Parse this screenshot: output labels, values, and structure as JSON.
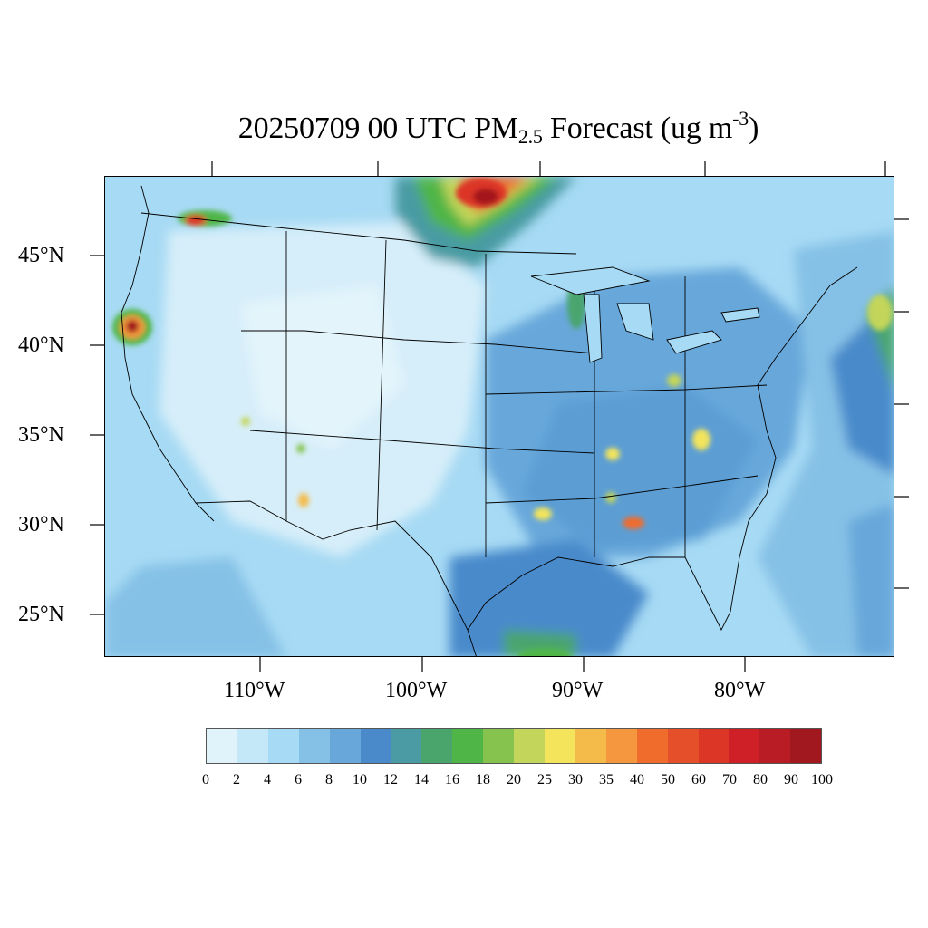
{
  "title": {
    "main": "20250709 00 UTC PM",
    "subscript": "2.5",
    "suffix": " Forecast (ug m",
    "superscript": "-3",
    "closing": ")"
  },
  "map": {
    "projection": "Lambert Conformal",
    "region": "Contiguous United States",
    "lat_labels": [
      "45°N",
      "40°N",
      "35°N",
      "30°N",
      "25°N"
    ],
    "lon_labels": [
      "110°W",
      "100°W",
      "90°W",
      "80°W"
    ],
    "features": [
      "state-borders",
      "coastlines",
      "country-borders",
      "great-lakes"
    ],
    "hotspots": [
      {
        "name": "southern-canada-smoke",
        "peak_value": 100
      },
      {
        "name": "northwest-washington",
        "peak_value": 70
      },
      {
        "name": "northern-california-oregon",
        "peak_value": 100
      },
      {
        "name": "new-mexico-south",
        "peak_value": 35
      },
      {
        "name": "arizona-north",
        "peak_value": 25
      },
      {
        "name": "louisiana",
        "peak_value": 30
      },
      {
        "name": "alabama-south",
        "peak_value": 50
      },
      {
        "name": "north-carolina",
        "peak_value": 30
      },
      {
        "name": "tennessee",
        "peak_value": 25
      },
      {
        "name": "atlantic-offshore",
        "peak_value": 25
      }
    ]
  },
  "colorbar": {
    "labels": [
      "0",
      "2",
      "4",
      "6",
      "8",
      "10",
      "12",
      "14",
      "16",
      "18",
      "20",
      "25",
      "30",
      "35",
      "40",
      "50",
      "60",
      "70",
      "80",
      "90",
      "100"
    ],
    "colors": [
      "#e0f3fb",
      "#c5e8f8",
      "#a7daf4",
      "#85c1e6",
      "#67a7da",
      "#4a8acb",
      "#4a9ba3",
      "#4aa56d",
      "#4fb547",
      "#85c34e",
      "#c3d55a",
      "#f3e45b",
      "#f4bb4a",
      "#f4973e",
      "#ef6c2d",
      "#e5502a",
      "#dc3627",
      "#cf2027",
      "#b91c24",
      "#a2181f"
    ],
    "unit": "ug m-3"
  }
}
